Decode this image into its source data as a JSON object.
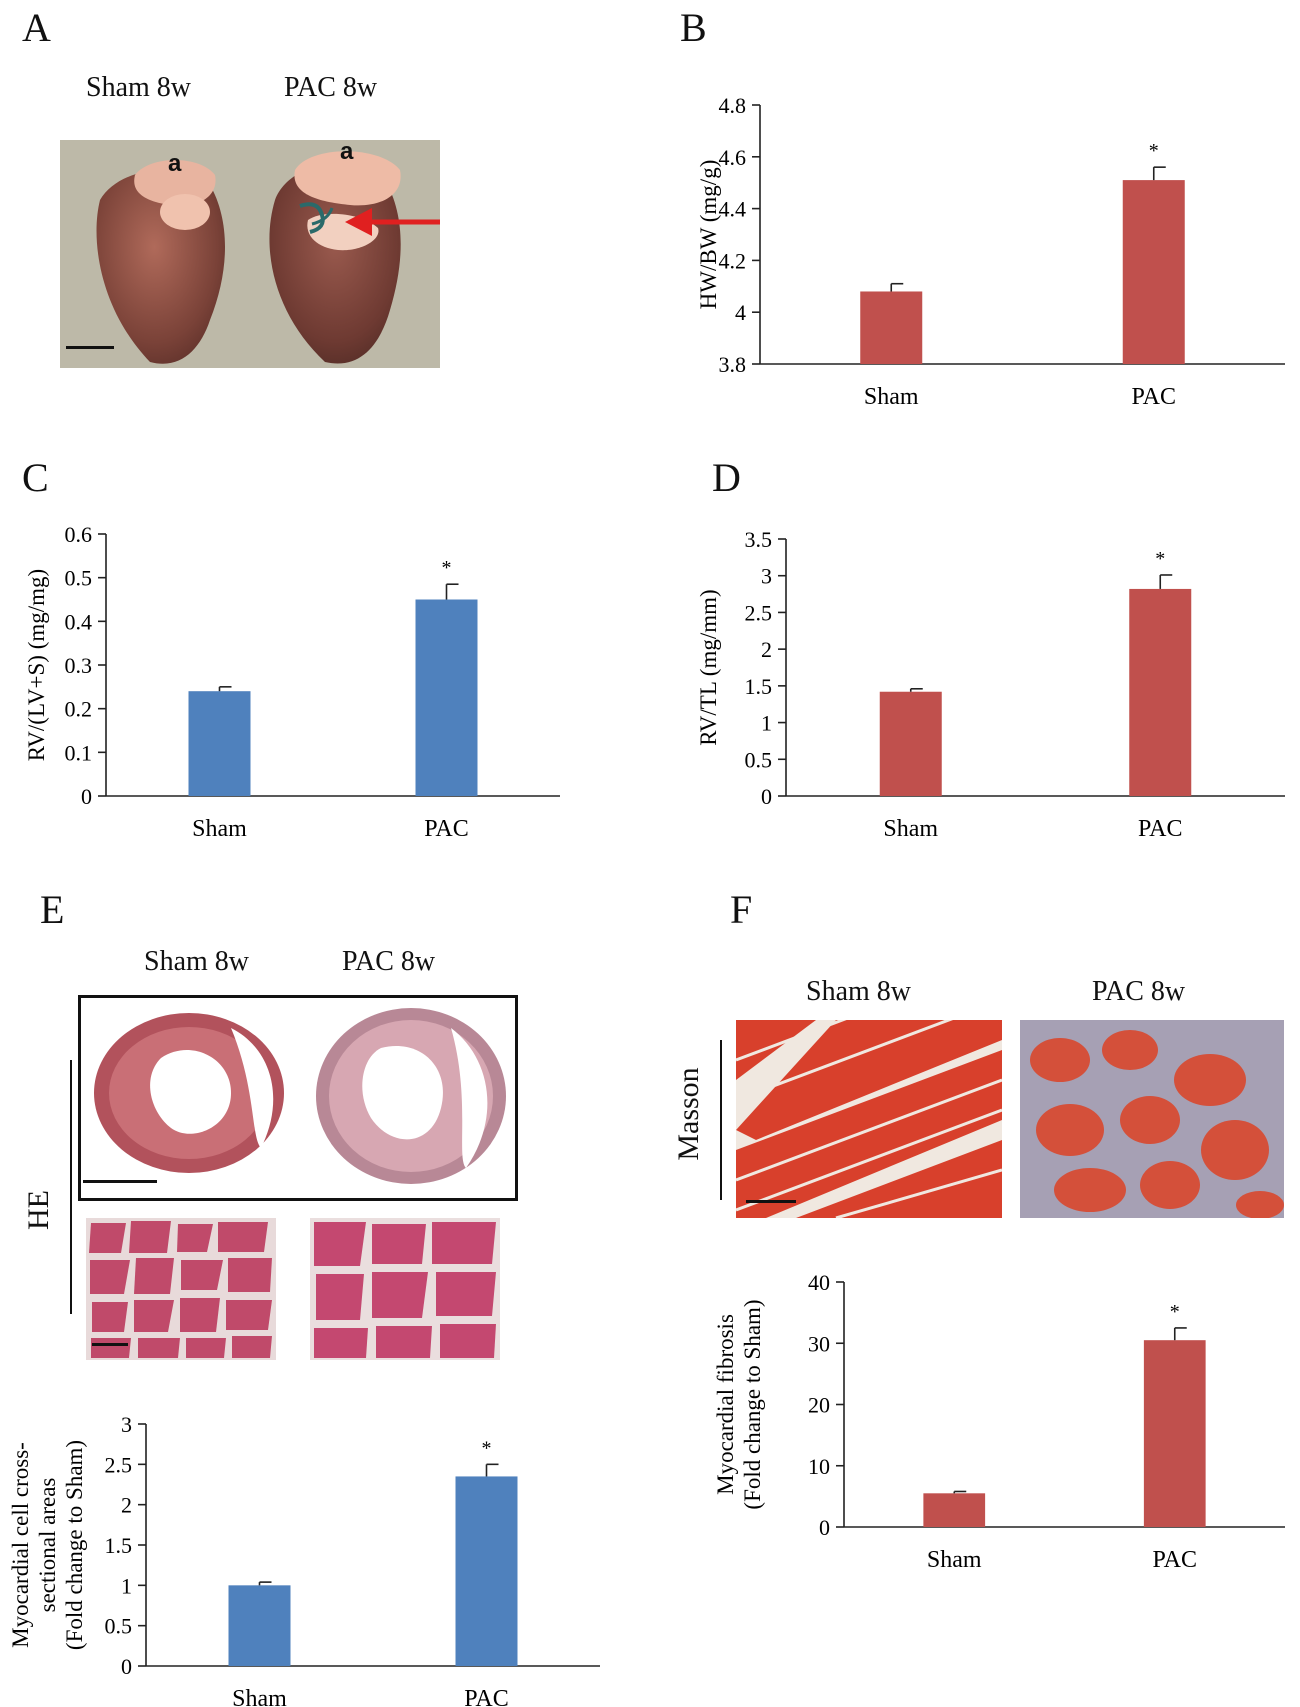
{
  "colors": {
    "red": "#C0504D",
    "blue": "#4F81BD"
  },
  "panelA": {
    "letter": "A",
    "label_sham": "Sham 8w",
    "label_pac": "PAC 8w",
    "atrium_mark_1": "a",
    "atrium_mark_2": "a"
  },
  "panelE": {
    "letter": "E",
    "label_sham": "Sham 8w",
    "label_pac": "PAC 8w",
    "stain": "HE"
  },
  "panelF": {
    "letter": "F",
    "label_sham": "Sham 8w",
    "label_pac": "PAC 8w",
    "stain": "Masson"
  },
  "chart_data": [
    {
      "id": "B",
      "letter": "B",
      "type": "bar",
      "color": "red",
      "categories": [
        "Sham",
        "PAC"
      ],
      "values": [
        4.08,
        4.51
      ],
      "errors": [
        0.03,
        0.05
      ],
      "significance": [
        "",
        "*"
      ],
      "ylabel": [
        "HW/BW (mg/g)"
      ],
      "ylim": [
        3.8,
        4.8
      ],
      "yticks": [
        3.8,
        4,
        4.2,
        4.4,
        4.6,
        4.8
      ],
      "ytick_labels": [
        "3.8",
        "4",
        "4.2",
        "4.4",
        "4.6",
        "4.8"
      ]
    },
    {
      "id": "C",
      "letter": "C",
      "type": "bar",
      "color": "blue",
      "categories": [
        "Sham",
        "PAC"
      ],
      "values": [
        0.24,
        0.45
      ],
      "errors": [
        0.01,
        0.035
      ],
      "significance": [
        "",
        "*"
      ],
      "ylabel": [
        "RV/(LV+S) (mg/mg)"
      ],
      "ylim": [
        0,
        0.6
      ],
      "yticks": [
        0,
        0.1,
        0.2,
        0.3,
        0.4,
        0.5,
        0.6
      ],
      "ytick_labels": [
        "0",
        "0.1",
        "0.2",
        "0.3",
        "0.4",
        "0.5",
        "0.6"
      ]
    },
    {
      "id": "D",
      "letter": "D",
      "type": "bar",
      "color": "red",
      "categories": [
        "Sham",
        "PAC"
      ],
      "values": [
        1.42,
        2.82
      ],
      "errors": [
        0.04,
        0.19
      ],
      "significance": [
        "",
        "*"
      ],
      "ylabel": [
        "RV/TL (mg/mm)"
      ],
      "ylim": [
        0,
        3.5
      ],
      "yticks": [
        0,
        0.5,
        1,
        1.5,
        2,
        2.5,
        3,
        3.5
      ],
      "ytick_labels": [
        "0",
        "0.5",
        "1",
        "1.5",
        "2",
        "2.5",
        "3",
        "3.5"
      ]
    },
    {
      "id": "E",
      "type": "bar",
      "color": "blue",
      "categories": [
        "Sham",
        "PAC"
      ],
      "values": [
        1.0,
        2.35
      ],
      "errors": [
        0.04,
        0.15
      ],
      "significance": [
        "",
        "*"
      ],
      "ylabel": [
        "Myocardial cell cross-",
        "sectional areas",
        "(Fold change to Sham)"
      ],
      "ylim": [
        0,
        3
      ],
      "yticks": [
        0,
        0.5,
        1,
        1.5,
        2,
        2.5,
        3
      ],
      "ytick_labels": [
        "0",
        "0.5",
        "1",
        "1.5",
        "2",
        "2.5",
        "3"
      ]
    },
    {
      "id": "F",
      "type": "bar",
      "color": "red",
      "categories": [
        "Sham",
        "PAC"
      ],
      "values": [
        5.5,
        30.5
      ],
      "errors": [
        0.3,
        2.0
      ],
      "significance": [
        "",
        "*"
      ],
      "ylabel": [
        "Myocardial fibrosis",
        "(Fold change to Sham)"
      ],
      "ylim": [
        0,
        40
      ],
      "yticks": [
        0,
        10,
        20,
        30,
        40
      ],
      "ytick_labels": [
        "0",
        "10",
        "20",
        "30",
        "40"
      ]
    }
  ]
}
